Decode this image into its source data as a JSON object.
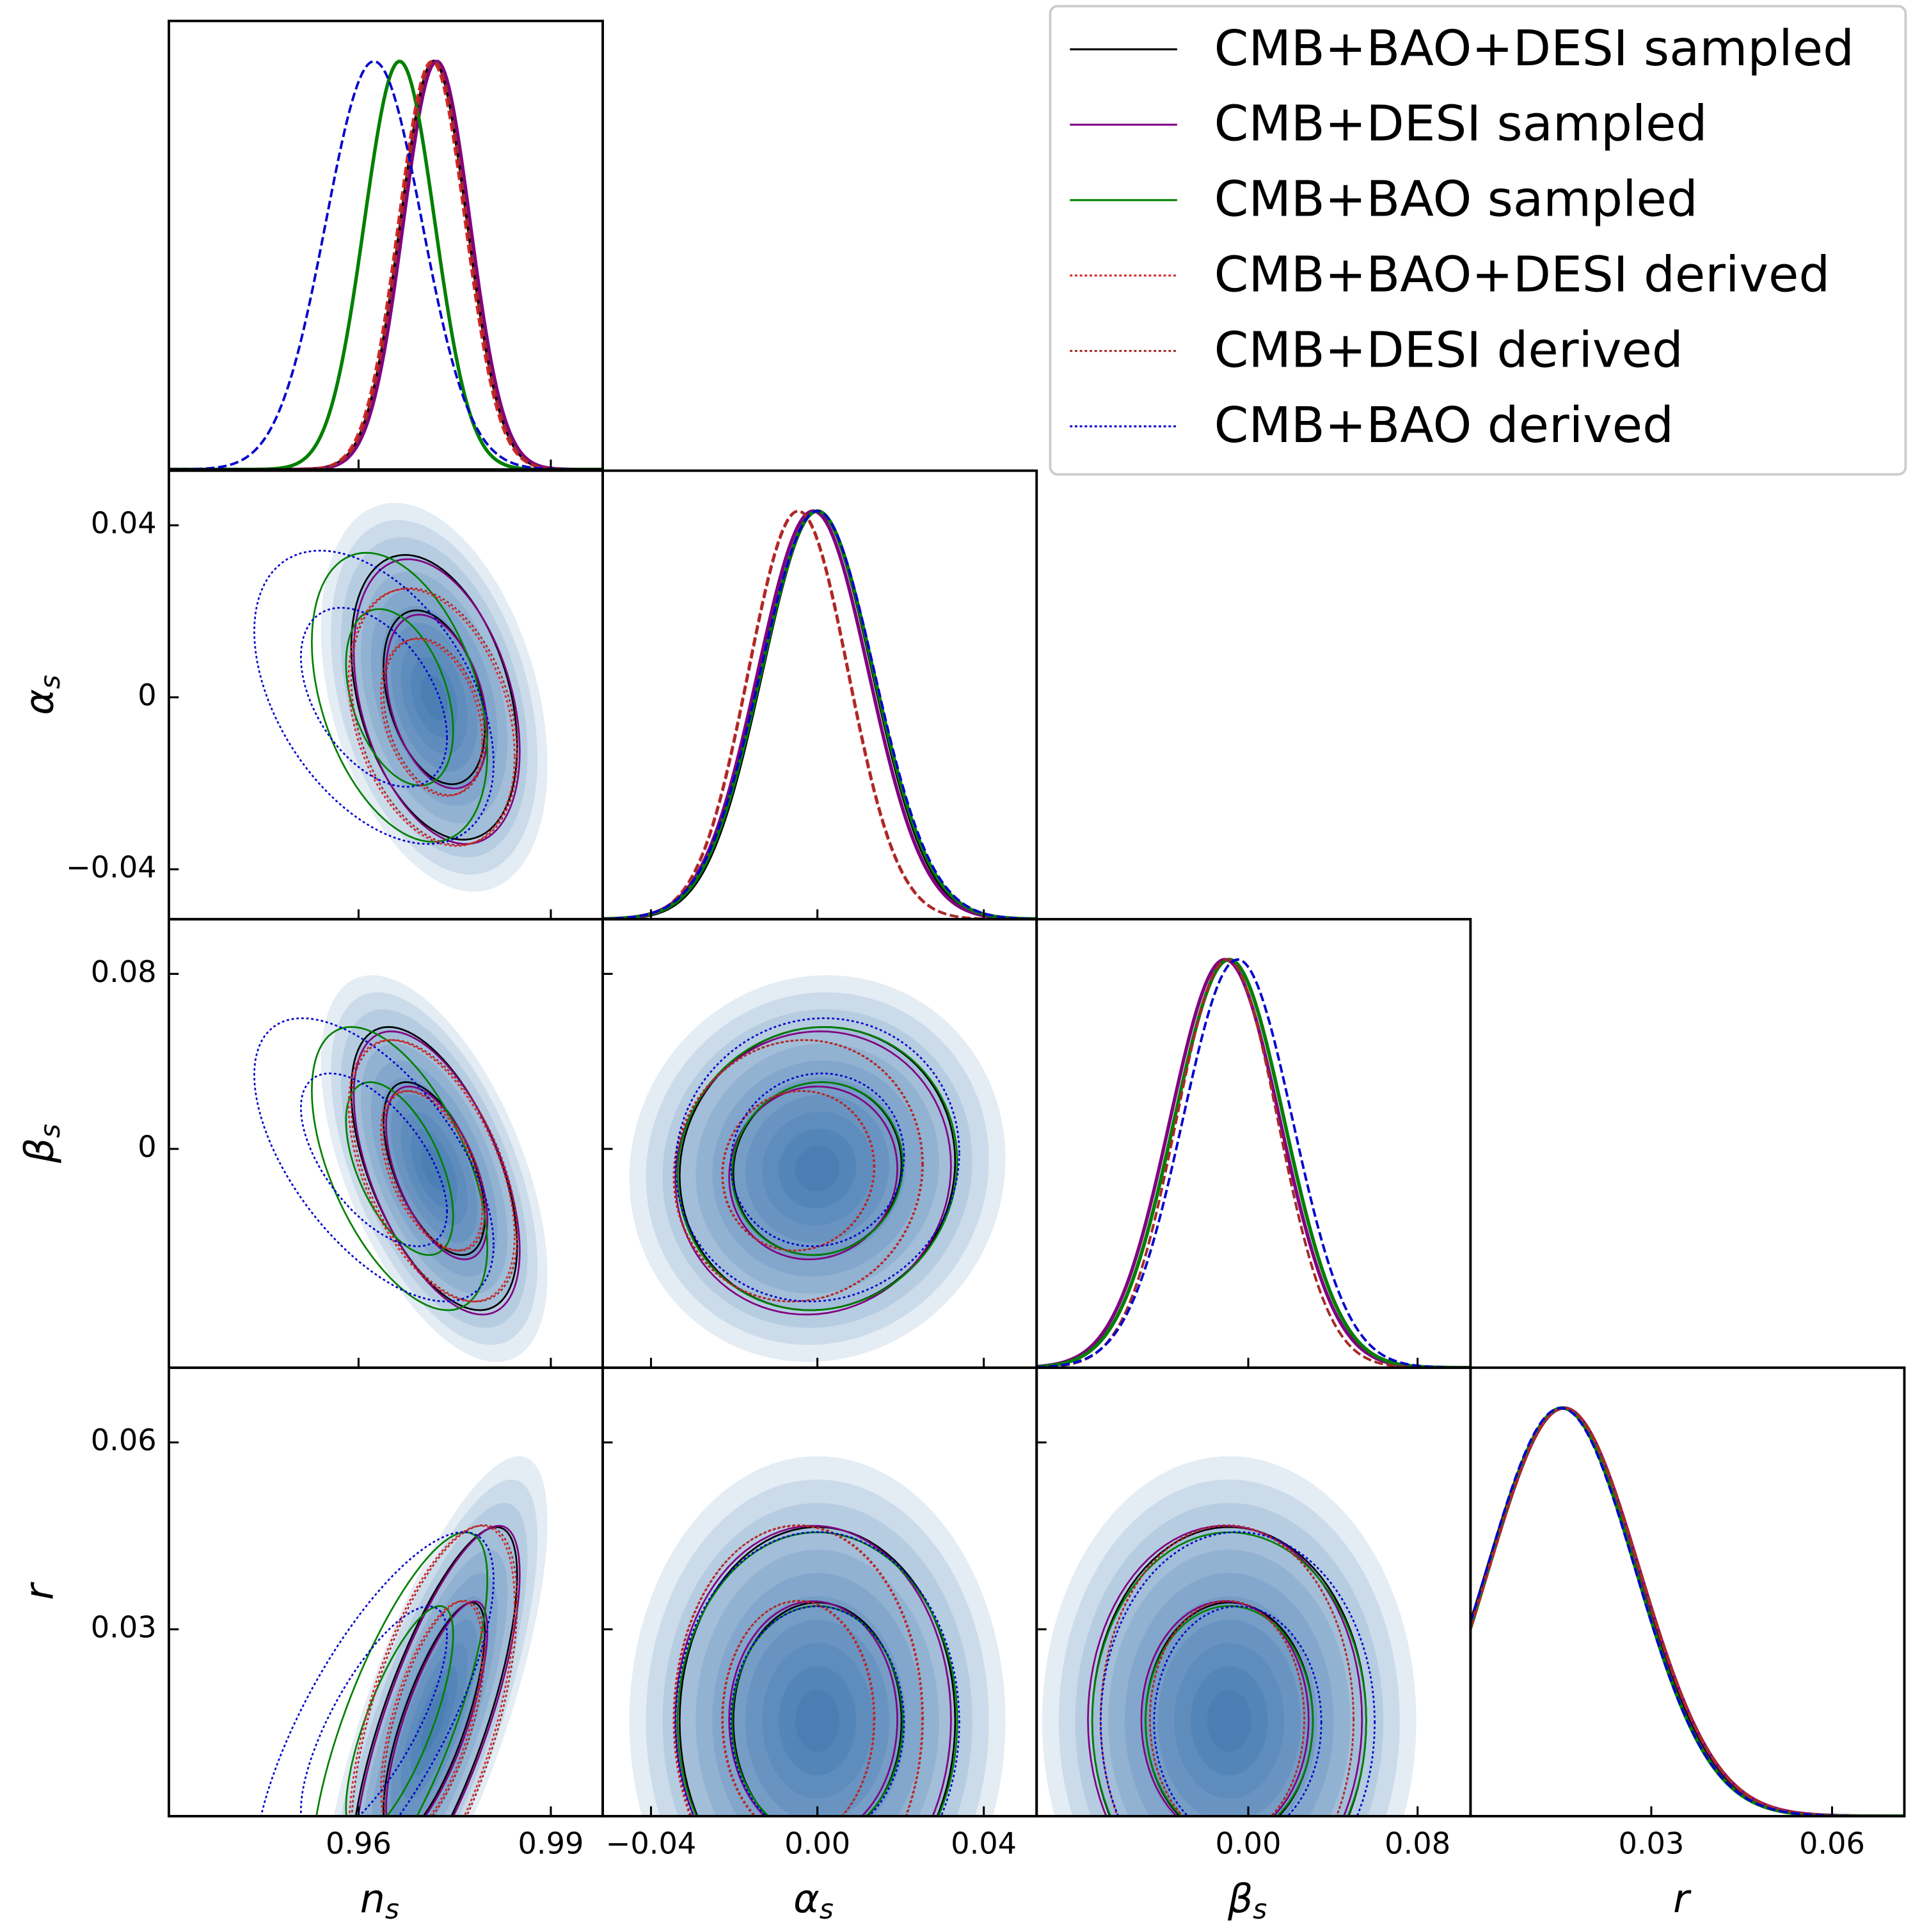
{
  "chart_data": {
    "type": "corner",
    "parameters": [
      {
        "symbol": "n",
        "subscript": "s",
        "lim": [
          0.9304,
          0.9981
        ],
        "xticks": [
          0.96,
          0.99
        ]
      },
      {
        "symbol": "α",
        "subscript": "s",
        "lim": [
          -0.0516,
          0.0527
        ],
        "xticks": [
          {
            "value": -0.04,
            "label": "−0.04"
          },
          {
            "value": 0,
            "label": "0.00"
          },
          0.04
        ],
        "yticks": [
          0.04,
          0,
          {
            "value": -0.04,
            "label": "−0.04"
          }
        ]
      },
      {
        "symbol": "β",
        "subscript": "s",
        "lim": [
          -0.1,
          0.105
        ],
        "xticks": [
          {
            "value": 0,
            "label": "0.00"
          },
          0.08
        ],
        "yticks": [
          0.08,
          0
        ]
      },
      {
        "symbol": "r",
        "lim": [
          0,
          0.072
        ],
        "xticks": [
          0.03,
          0.06
        ],
        "yticks": [
          0.06,
          0.03
        ]
      }
    ],
    "shade": "#08519c",
    "series": [
      {
        "name": "CMB+BAO+DESI sampled",
        "color": "#000000",
        "linestyle": "solid",
        "mean": [
          0.9718,
          0.0,
          -0.009,
          0.0153
        ],
        "sigma": [
          0.0052,
          0.0133,
          0.026,
          0.0125
        ],
        "corr": [
          -0.35,
          -0.55,
          0.75,
          0.05,
          0.0,
          0.0
        ]
      },
      {
        "name": "CMB+DESI sampled",
        "color": "#800080",
        "linestyle": "solid",
        "mean": [
          0.9722,
          -0.001,
          -0.011,
          0.0155
        ],
        "sigma": [
          0.0052,
          0.0133,
          0.026,
          0.0125
        ],
        "corr": [
          -0.35,
          -0.55,
          0.75,
          0.05,
          0.0,
          0.0
        ]
      },
      {
        "name": "CMB+BAO sampled",
        "color": "#008000",
        "linestyle": "solid",
        "mean": [
          0.9664,
          0.0,
          -0.009,
          0.0152
        ],
        "sigma": [
          0.0055,
          0.0135,
          0.026,
          0.0122
        ],
        "corr": [
          -0.38,
          -0.55,
          0.75,
          0.05,
          0.0,
          0.0
        ]
      },
      {
        "name": "CMB+BAO+DESI derived",
        "color": "#d62728",
        "linestyle": "dotted",
        "mean": [
          0.9714,
          -0.0047,
          -0.01,
          0.0155
        ],
        "sigma": [
          0.0052,
          0.012,
          0.024,
          0.0125
        ],
        "corr": [
          -0.3,
          -0.5,
          0.6,
          0.05,
          0.0,
          0.0
        ]
      },
      {
        "name": "CMB+DESI derived",
        "color": "#a52a2a",
        "linestyle": "dotted",
        "mean": [
          0.9718,
          -0.0045,
          -0.01,
          0.0156
        ],
        "sigma": [
          0.0052,
          0.012,
          0.024,
          0.0125
        ],
        "corr": [
          -0.3,
          -0.5,
          0.6,
          0.05,
          0.0,
          0.0
        ]
      },
      {
        "name": "CMB+BAO derived",
        "color": "#0000cd",
        "linestyle": "dotted",
        "mean": [
          0.9624,
          0.0,
          -0.005,
          0.015
        ],
        "sigma": [
          0.0075,
          0.0137,
          0.026,
          0.0123
        ],
        "corr": [
          -0.45,
          -0.6,
          0.75,
          0.05,
          0.0,
          0.0
        ]
      }
    ]
  }
}
